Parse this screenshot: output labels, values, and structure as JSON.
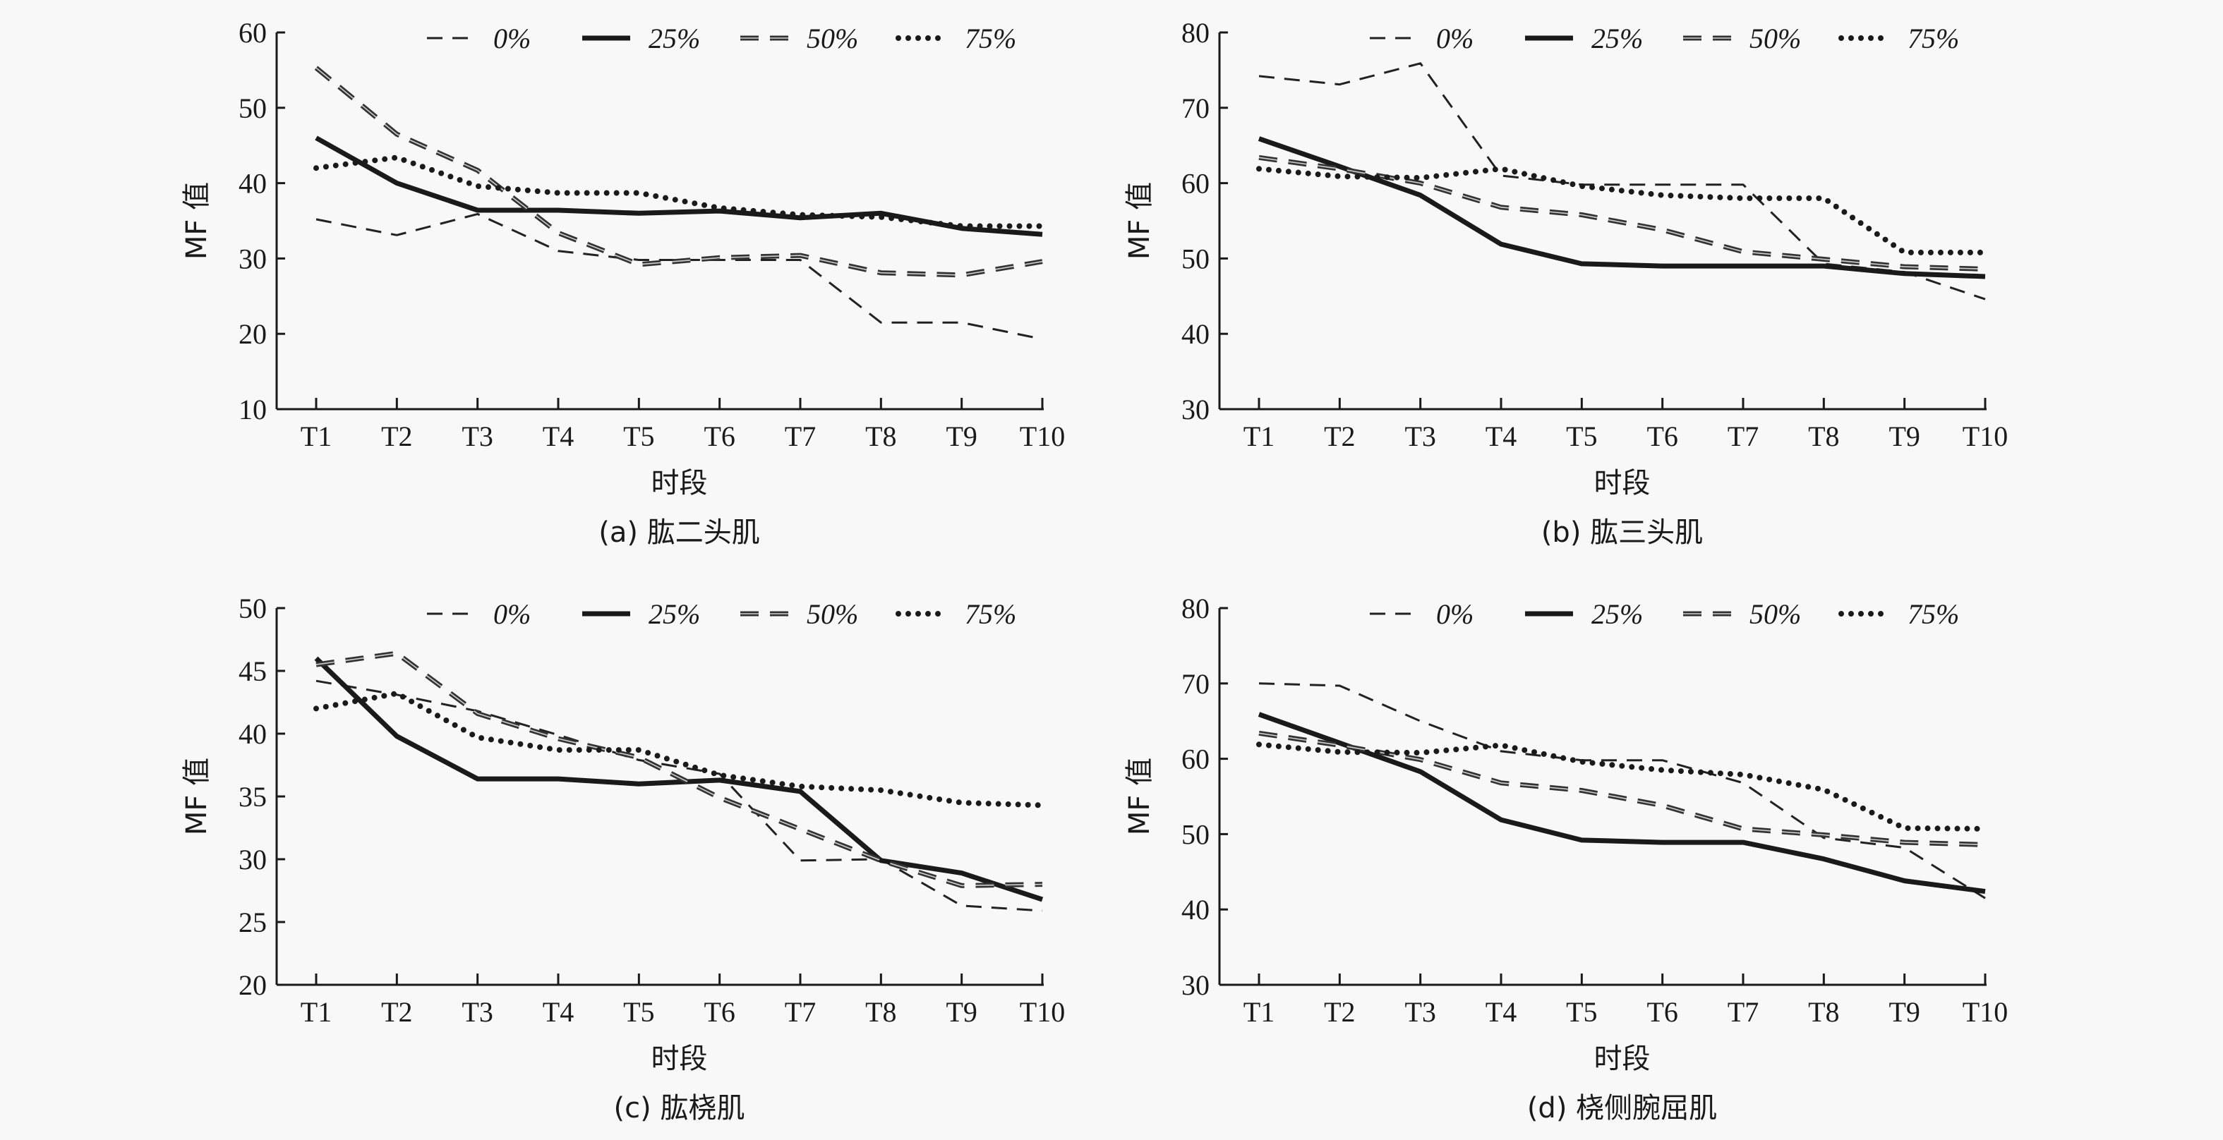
{
  "figure": {
    "series_names": [
      "0%",
      "25%",
      "50%",
      "75%"
    ],
    "series_styles": [
      {
        "key": "s0",
        "dash": "22 14",
        "width": 3,
        "color": "#222222",
        "double": false
      },
      {
        "key": "s25",
        "dash": "",
        "width": 7,
        "color": "#1a1a1a",
        "double": false
      },
      {
        "key": "s50",
        "dash": "26 16",
        "width": 7,
        "color": "#333333",
        "double": true
      },
      {
        "key": "s75",
        "dash": "0 14",
        "width": 8,
        "color": "#1a1a1a",
        "double": false,
        "round": true
      }
    ]
  },
  "chart_data": [
    {
      "id": "a",
      "type": "line",
      "caption": "(a) 肱二头肌",
      "xlabel": "时段",
      "ylabel": "MF 值",
      "categories": [
        "T1",
        "T2",
        "T3",
        "T4",
        "T5",
        "T6",
        "T7",
        "T8",
        "T9",
        "T10"
      ],
      "ylim": [
        10,
        60
      ],
      "yticks": [
        10,
        20,
        30,
        40,
        50,
        60
      ],
      "grid": false,
      "legend": "top-right",
      "series": [
        {
          "name": "0%",
          "values": [
            35.2,
            33.1,
            35.9,
            31.0,
            29.8,
            29.8,
            29.8,
            21.5,
            21.5,
            19.3
          ]
        },
        {
          "name": "25%",
          "values": [
            46.0,
            40.0,
            36.4,
            36.4,
            36.0,
            36.3,
            35.4,
            36.0,
            34.0,
            33.2
          ]
        },
        {
          "name": "50%",
          "values": [
            55.3,
            46.5,
            41.7,
            33.4,
            29.2,
            30.1,
            30.4,
            28.1,
            27.8,
            29.6
          ]
        },
        {
          "name": "75%",
          "values": [
            42.0,
            43.4,
            39.6,
            38.7,
            38.7,
            36.7,
            35.8,
            35.5,
            34.3,
            34.3
          ]
        }
      ]
    },
    {
      "id": "b",
      "type": "line",
      "caption": "(b) 肱三头肌",
      "xlabel": "时段",
      "ylabel": "MF 值",
      "categories": [
        "T1",
        "T2",
        "T3",
        "T4",
        "T5",
        "T6",
        "T7",
        "T8",
        "T9",
        "T10"
      ],
      "ylim": [
        30,
        80
      ],
      "yticks": [
        30,
        40,
        50,
        60,
        70,
        80
      ],
      "grid": false,
      "legend": "top-right",
      "series": [
        {
          "name": "0%",
          "values": [
            74.2,
            73.1,
            75.9,
            61.0,
            59.8,
            59.8,
            59.8,
            49.3,
            48.2,
            44.6
          ]
        },
        {
          "name": "25%",
          "values": [
            65.9,
            62.2,
            58.4,
            51.9,
            49.3,
            49.0,
            49.0,
            49.0,
            48.0,
            47.6
          ]
        },
        {
          "name": "50%",
          "values": [
            63.4,
            61.9,
            60.0,
            56.8,
            55.8,
            53.8,
            50.9,
            49.9,
            48.9,
            48.6
          ]
        },
        {
          "name": "75%",
          "values": [
            61.9,
            60.9,
            60.7,
            61.9,
            59.6,
            58.4,
            58.0,
            58.0,
            50.8,
            50.8
          ]
        }
      ]
    },
    {
      "id": "c",
      "type": "line",
      "caption": "(c) 肱桡肌",
      "xlabel": "时段",
      "ylabel": "MF 值",
      "categories": [
        "T1",
        "T2",
        "T3",
        "T4",
        "T5",
        "T6",
        "T7",
        "T8",
        "T9",
        "T10"
      ],
      "ylim": [
        20,
        50
      ],
      "yticks": [
        20,
        25,
        30,
        35,
        40,
        45,
        50
      ],
      "grid": false,
      "legend": "top-right",
      "series": [
        {
          "name": "0%",
          "values": [
            44.2,
            43.1,
            41.8,
            39.9,
            37.9,
            36.8,
            29.9,
            30.0,
            26.3,
            25.9
          ]
        },
        {
          "name": "25%",
          "values": [
            46.0,
            39.8,
            36.4,
            36.4,
            36.0,
            36.3,
            35.4,
            29.9,
            28.9,
            26.8
          ]
        },
        {
          "name": "50%",
          "values": [
            45.5,
            46.4,
            41.6,
            39.6,
            38.1,
            34.9,
            32.4,
            29.9,
            27.9,
            28.0
          ]
        },
        {
          "name": "75%",
          "values": [
            42.0,
            43.2,
            39.7,
            38.7,
            38.7,
            36.7,
            35.8,
            35.5,
            34.5,
            34.3
          ]
        }
      ]
    },
    {
      "id": "d",
      "type": "line",
      "caption": "(d) 桡侧腕屈肌",
      "xlabel": "时段",
      "ylabel": "MF 值",
      "categories": [
        "T1",
        "T2",
        "T3",
        "T4",
        "T5",
        "T6",
        "T7",
        "T8",
        "T9",
        "T10"
      ],
      "ylim": [
        30,
        80
      ],
      "yticks": [
        30,
        40,
        50,
        60,
        70,
        80
      ],
      "grid": false,
      "legend": "top-right",
      "series": [
        {
          "name": "0%",
          "values": [
            70.0,
            69.7,
            65.0,
            61.0,
            59.8,
            59.8,
            56.8,
            49.5,
            48.2,
            41.5
          ]
        },
        {
          "name": "25%",
          "values": [
            65.9,
            62.1,
            58.3,
            51.9,
            49.2,
            48.9,
            48.9,
            46.7,
            43.8,
            42.4
          ]
        },
        {
          "name": "50%",
          "values": [
            63.4,
            61.8,
            59.9,
            56.8,
            55.8,
            53.8,
            50.7,
            49.9,
            48.9,
            48.6
          ]
        },
        {
          "name": "75%",
          "values": [
            61.9,
            60.9,
            60.8,
            61.8,
            59.6,
            58.5,
            57.9,
            55.9,
            50.8,
            50.7
          ]
        }
      ]
    }
  ]
}
